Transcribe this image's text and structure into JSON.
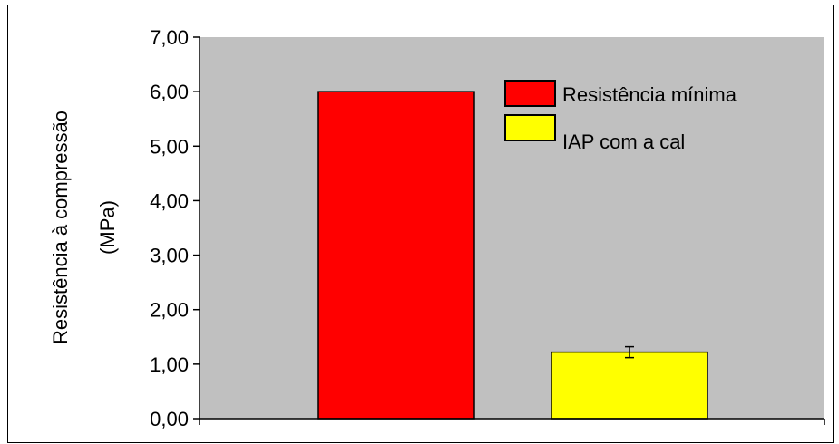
{
  "chart_data": {
    "type": "bar",
    "title": "",
    "xlabel": "",
    "ylabel_lines": [
      "Resistência à compressão",
      "(MPa)"
    ],
    "ylim": [
      0,
      7
    ],
    "yticks": [
      "0,00",
      "1,00",
      "2,00",
      "3,00",
      "4,00",
      "5,00",
      "6,00",
      "7,00"
    ],
    "grid": false,
    "legend_position": "top-right",
    "plot_background": "#c0c0c0",
    "series": [
      {
        "name": "Resistência mínima",
        "value": 6.0,
        "color": "#ff0000",
        "error": null
      },
      {
        "name": "IAP com a cal",
        "value": 1.22,
        "color": "#ffff00",
        "error": 0.1
      }
    ]
  }
}
